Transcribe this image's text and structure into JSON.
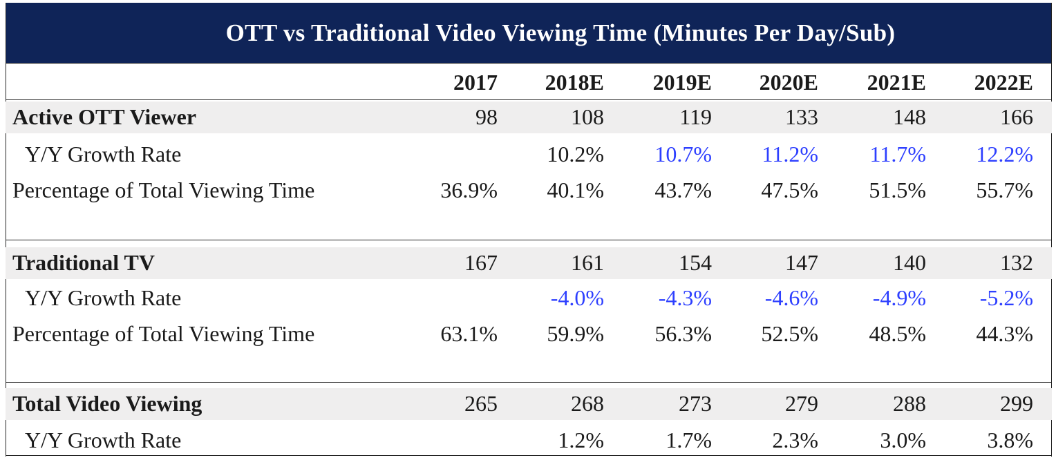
{
  "title": "OTT vs Traditional Video Viewing Time (Minutes Per Day/Sub)",
  "colors": {
    "header_bg": "#0f2458",
    "estimate_blue": "#2d3fff",
    "band_bg": "#efeeee"
  },
  "chart_data": {
    "type": "table",
    "title": "OTT vs Traditional Video Viewing Time (Minutes Per Day/Sub)",
    "columns": [
      "2017",
      "2018E",
      "2019E",
      "2020E",
      "2021E",
      "2022E"
    ],
    "rows": [
      {
        "label": "Active OTT Viewer",
        "values": [
          "98",
          "108",
          "119",
          "133",
          "148",
          "166"
        ]
      },
      {
        "label": "Y/Y Growth Rate",
        "values": [
          "",
          "10.2%",
          "10.7%",
          "11.2%",
          "11.7%",
          "12.2%"
        ]
      },
      {
        "label": "Percentage of Total Viewing Time",
        "values": [
          "36.9%",
          "40.1%",
          "43.7%",
          "47.5%",
          "51.5%",
          "55.7%"
        ]
      },
      {
        "label": "Traditional TV",
        "values": [
          "167",
          "161",
          "154",
          "147",
          "140",
          "132"
        ]
      },
      {
        "label": "Y/Y Growth Rate",
        "values": [
          "",
          "-4.0%",
          "-4.3%",
          "-4.6%",
          "-4.9%",
          "-5.2%"
        ]
      },
      {
        "label": "Percentage of Total Viewing Time",
        "values": [
          "63.1%",
          "59.9%",
          "56.3%",
          "52.5%",
          "48.5%",
          "44.3%"
        ]
      },
      {
        "label": "Total Video Viewing",
        "values": [
          "265",
          "268",
          "273",
          "279",
          "288",
          "299"
        ]
      },
      {
        "label": "Y/Y Growth Rate",
        "values": [
          "",
          "1.2%",
          "1.7%",
          "2.3%",
          "3.0%",
          "3.8%"
        ]
      }
    ]
  }
}
